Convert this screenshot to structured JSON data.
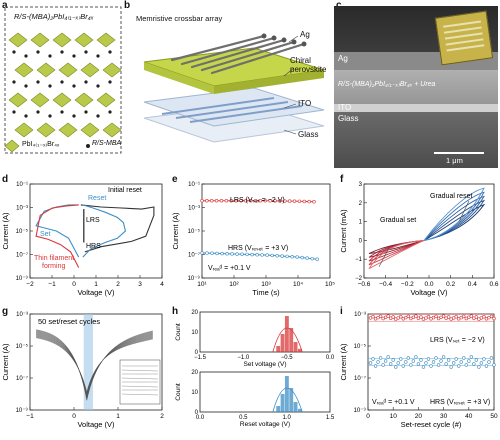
{
  "panels": {
    "a": {
      "letter": "a",
      "title": "R/S-(MBA)₂PbI₄₍₁₋ₓ₎Br₄ₓ",
      "legend_octahedron": "PbI₄₍₁₋ₓ₎Br₄ₓ",
      "legend_molecule": "R/S-MBA"
    },
    "b": {
      "letter": "b",
      "array_label": "Memristive crossbar array",
      "layers": [
        "Ag",
        "Chiral perovskite",
        "ITO",
        "Glass"
      ]
    },
    "c": {
      "letter": "c",
      "layers": [
        "Ag",
        "R/S-(MBA)₂PbI₄₍₁₋ₓ₎Br₄ₓ + Urea",
        "ITO",
        "Glass"
      ],
      "scale_bar": "1 μm"
    },
    "d": {
      "letter": "d",
      "annotations": [
        "Initial reset",
        "Reset",
        "LRS",
        "HRS",
        "Set",
        "Thin filament",
        "forming"
      ]
    },
    "e": {
      "letter": "e",
      "lrs_label": "LRS (Vₛₑₜ = −2 V)",
      "hrs_label": "HRS (Vᵣₑₛₑₜ = +3 V)",
      "vread_label": "Vᵣₑₐᵈ = +0.1 V"
    },
    "f": {
      "letter": "f",
      "gradual_set": "Gradual set",
      "gradual_reset": "Gradual reset"
    },
    "g": {
      "letter": "g",
      "cycles_label": "50 set/reset cycles"
    },
    "h": {
      "letter": "h"
    },
    "i": {
      "letter": "i",
      "lrs_label": "LRS (Vₛₑₜ = −2 V)",
      "hrs_label": "HRS (Vᵣₑₛₑₜ = +3 V)",
      "vread_label": "Vᵣₑₐᵈ = +0.1 V"
    }
  },
  "colors": {
    "red": "#d9383a",
    "blue": "#3d8fc6",
    "dark": "#333333",
    "perovskite": "#b9c94a"
  },
  "chart_data": [
    {
      "panel": "d",
      "type": "line",
      "xlabel": "Voltage (V)",
      "ylabel": "Current (A)",
      "xticks": [
        "−2",
        "−1",
        "0",
        "1",
        "2",
        "3",
        "4"
      ],
      "yticks": [
        "10⁻⁹",
        "10⁻⁷",
        "10⁻⁵",
        "10⁻³",
        "10⁻¹"
      ],
      "xlim": [
        -2.5,
        4
      ],
      "ylim_log10": [
        -10,
        -1
      ]
    },
    {
      "panel": "e",
      "type": "scatter",
      "xlabel": "Time (s)",
      "ylabel": "Current (A)",
      "xticks": [
        "10¹",
        "10²",
        "10³",
        "10⁴",
        "10⁵"
      ],
      "yticks": [
        "10⁻⁹",
        "10⁻⁷",
        "10⁻⁵",
        "10⁻³",
        "10⁻¹"
      ],
      "series": [
        {
          "name": "LRS (Vₛₑₜ = −2 V)",
          "x_log10": [
            1,
            2,
            3,
            4,
            4.5
          ],
          "y_log10": [
            -2.6,
            -2.6,
            -2.6,
            -2.65,
            -2.7
          ]
        },
        {
          "name": "HRS (Vᵣₑₛₑₜ = +3 V)",
          "x_log10": [
            1,
            2,
            3,
            4,
            4.6
          ],
          "y_log10": [
            -7.6,
            -7.7,
            -7.8,
            -8.0,
            -8.2
          ]
        }
      ]
    },
    {
      "panel": "f",
      "type": "line",
      "xlabel": "Voltage (V)",
      "ylabel": "Current (mA)",
      "xticks": [
        "−0.6",
        "−0.4",
        "−0.2",
        "0.0",
        "0.2",
        "0.4",
        "0.6"
      ],
      "yticks": [
        "−2",
        "−1",
        "0",
        "1",
        "2",
        "3"
      ],
      "xlim": [
        -0.6,
        0.7
      ],
      "ylim": [
        -2,
        3
      ]
    },
    {
      "panel": "g",
      "type": "line",
      "xlabel": "Voltage (V)",
      "ylabel": "Current (A)",
      "xticks": [
        "−1",
        "0",
        "1",
        "2"
      ],
      "yticks": [
        "10⁻⁹",
        "10⁻⁷",
        "10⁻⁵",
        "10⁻³"
      ],
      "xlim": [
        -1.8,
        2.5
      ]
    },
    {
      "panel": "h",
      "type": "bar",
      "subplots": [
        {
          "xlabel": "Set voltage (V)",
          "ylabel": "Count",
          "xticks": [
            "−1.5",
            "−1.0",
            "−0.5",
            "0.0"
          ],
          "yticks": [
            "0",
            "10",
            "20"
          ],
          "peak": -0.5,
          "color": "red"
        },
        {
          "xlabel": "Reset voltage (V)",
          "ylabel": "Count",
          "xticks": [
            "0.0",
            "0.5",
            "1.0",
            "1.5"
          ],
          "yticks": [
            "0",
            "10",
            "20"
          ],
          "peak": 1.0,
          "color": "blue"
        }
      ]
    },
    {
      "panel": "i",
      "type": "scatter",
      "xlabel": "Set-reset cycle (#)",
      "ylabel": "Current (A)",
      "xticks": [
        "0",
        "10",
        "20",
        "30",
        "40",
        "50"
      ],
      "yticks": [
        "10⁻⁹",
        "10⁻⁷",
        "10⁻⁵",
        "10⁻³"
      ],
      "series": [
        {
          "name": "LRS (Vₛₑₜ = −2 V)",
          "y_log10_mean": -2.3
        },
        {
          "name": "HRS (Vᵣₑₛₑₜ = +3 V)",
          "y_log10_mean": -6.0
        }
      ]
    }
  ]
}
